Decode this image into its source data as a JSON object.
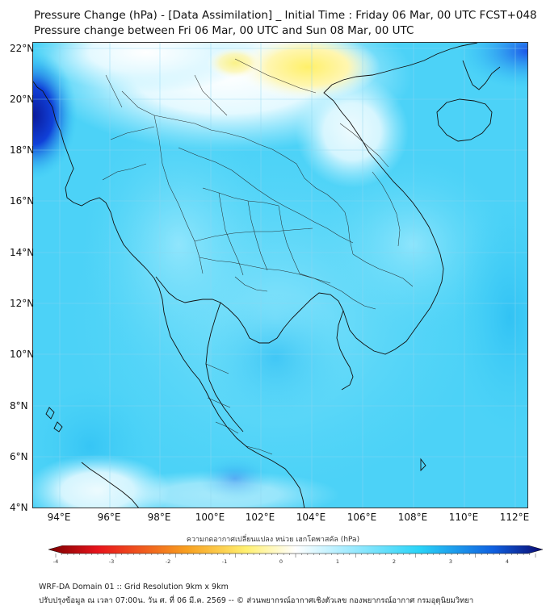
{
  "title_line1": "Pressure Change (hPa) - [Data Assimilation] _ Initial Time : Friday 06 Mar, 00 UTC FCST+048",
  "title_line2": "Pressure change between Fri 06 Mar, 00 UTC and Sun 08 Mar, 00 UTC",
  "lat_labels": [
    "22°N",
    "20°N",
    "18°N",
    "16°N",
    "14°N",
    "12°N",
    "10°N",
    "8°N",
    "6°N",
    "4°N"
  ],
  "lon_labels": [
    "94°E",
    "96°E",
    "98°E",
    "100°E",
    "102°E",
    "104°E",
    "106°E",
    "108°E",
    "110°E",
    "112°E"
  ],
  "colorbar": {
    "title": "ความกดอากาศเปลี่ยนแปลง หน่วย เฮกโตพาสคัล (hPa)",
    "ticks": [
      "-4",
      "-3",
      "-2",
      "-1",
      "0",
      "1",
      "2",
      "3",
      "4"
    ],
    "unit": "hPa",
    "min": -4,
    "max": 4,
    "colors": {
      "deep_red": "#7a0000",
      "red": "#e8141c",
      "orange": "#f8a020",
      "yellow": "#fff070",
      "white": "#ffffff",
      "light_cyan": "#a8ecff",
      "cyan": "#2ad4f8",
      "blue": "#1060e0",
      "navy": "#0a0a70"
    }
  },
  "footer_line1": "WRF-DA Domain 01 :: Grid Resolution 9km x 9km",
  "footer_line2": "ปรับปรุงข้อมูล ณ เวลา 07:00น. วัน ศ. ที่ 06 มี.ค. 2569 -- © ส่วนพยากรณ์อากาศเชิงตัวเลข กองพยากรณ์อากาศ กรมอุตุนิยมวิทยา"
}
